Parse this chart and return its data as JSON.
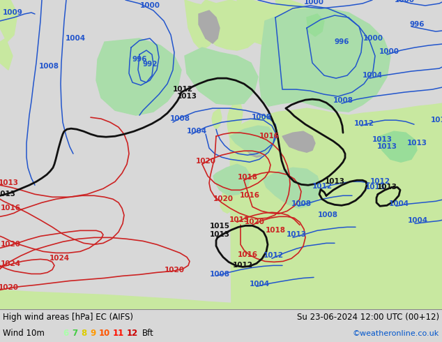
{
  "title": "High wind areas [hPa] EC (AIFS)",
  "title_right": "Su 23-06-2024 12:00 UTC (00+12)",
  "legend_label": "Wind 10m",
  "legend_values": [
    "6",
    "7",
    "8",
    "9",
    "10",
    "11",
    "12",
    "Bft"
  ],
  "legend_colors": [
    "#aaffaa",
    "#66dd44",
    "#ffdd00",
    "#ffaa00",
    "#ff6600",
    "#ff2200",
    "#cc0000",
    "#000000"
  ],
  "copyright": "©weatheronline.co.uk",
  "copyright_color": "#0055cc",
  "bg_color": "#d8d8d8",
  "sea_color": "#d8d8d8",
  "land_color": "#c8e8a0",
  "land_color2": "#b8d888",
  "mountain_color": "#aaaaaa",
  "wind_area_color": "#aaddaa",
  "wind_area_color2": "#88cc88",
  "isobar_blue_color": "#2255cc",
  "isobar_red_color": "#cc2222",
  "isobar_black_color": "#111111",
  "figsize": [
    6.34,
    4.9
  ],
  "dpi": 100,
  "text_color": "#000000",
  "font_size": 7.5
}
